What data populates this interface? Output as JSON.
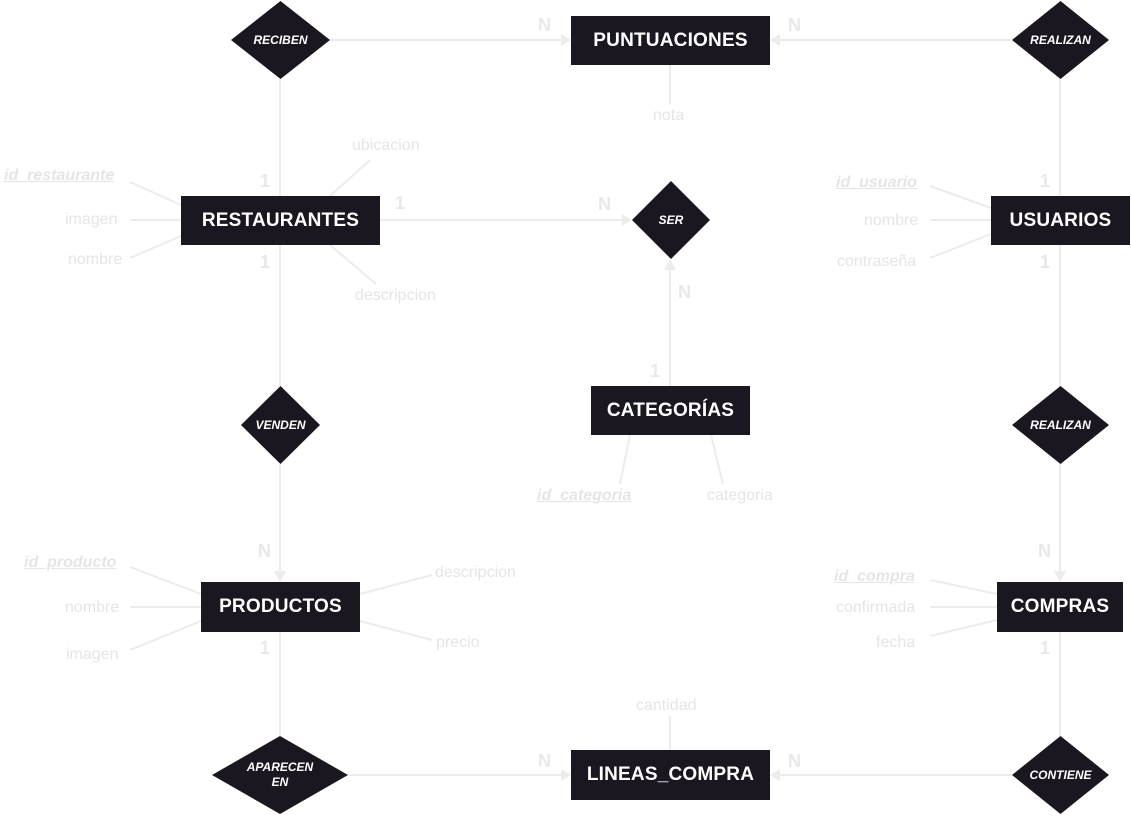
{
  "entities": {
    "puntuaciones": "PUNTUACIONES",
    "restaurantes": "RESTAURANTES",
    "usuarios": "USUARIOS",
    "categorias": "CATEGORÍAS",
    "productos": "PRODUCTOS",
    "compras": "COMPRAS",
    "lineas_compra": "LINEAS_COMPRA"
  },
  "relationships": {
    "reciben": "RECIBEN",
    "realizan_puntuaciones": "REALIZAN",
    "ser": "SER",
    "venden": "VENDEN",
    "realizan_compras": "REALIZAN",
    "aparecen_en_1": "APARECEN",
    "aparecen_en_2": "EN",
    "contiene": "CONTIENE"
  },
  "attributes": {
    "puntuaciones_nota": "nota",
    "restaurantes_ubicacion": "ubicacion",
    "restaurantes_id": "id_restaurante",
    "restaurantes_imagen": "imagen",
    "restaurantes_nombre": "nombre",
    "restaurantes_descripcion": "descripcion",
    "usuarios_id": "id_usuario",
    "usuarios_nombre": "nombre",
    "usuarios_contrasena": "contraseña",
    "categorias_id": "id_categoria",
    "categorias_categoria": "categoria",
    "productos_id": "id_producto",
    "productos_nombre": "nombre",
    "productos_imagen": "imagen",
    "productos_descripcion": "descripcion",
    "productos_precio": "precio",
    "compras_id": "id_compra",
    "compras_confirmada": "confirmada",
    "compras_fecha": "fecha",
    "lineas_cantidad": "cantidad"
  },
  "cardinalities": {
    "puntuaciones_left": "N",
    "puntuaciones_right": "N",
    "restaurantes_top": "1",
    "restaurantes_right": "1",
    "restaurantes_bottom": "1",
    "ser_left": "N",
    "ser_bottom": "N",
    "categorias_top": "1",
    "usuarios_top": "1",
    "usuarios_bottom": "1",
    "productos_top": "N",
    "productos_bottom": "1",
    "compras_top": "N",
    "compras_bottom": "1",
    "lineas_left": "N",
    "lineas_right": "N"
  },
  "colors": {
    "entity_fill": "#1b1720",
    "connector": "#ececec",
    "faint_text": "#e5e5e5"
  }
}
